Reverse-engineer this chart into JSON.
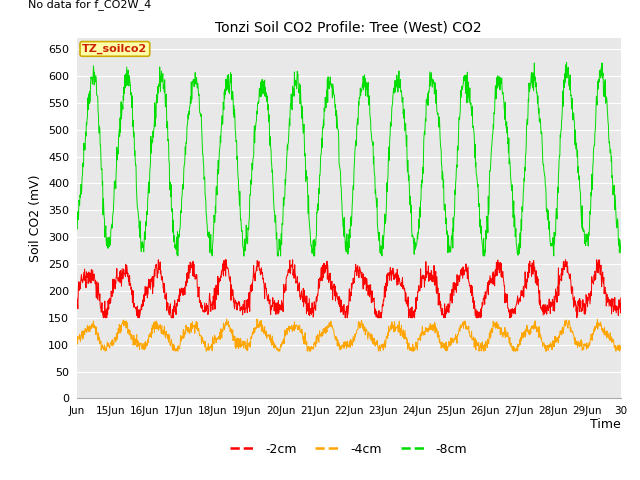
{
  "title": "Tonzi Soil CO2 Profile: Tree (West) CO2",
  "top_left_text": "No data for f_CO2W_4",
  "ylabel": "Soil CO2 (mV)",
  "xlabel": "Time",
  "legend_box_label": "TZ_soilco2",
  "legend_entries": [
    "-2cm",
    "-4cm",
    "-8cm"
  ],
  "legend_colors": [
    "#ff0000",
    "#ffa500",
    "#00dd00"
  ],
  "ylim": [
    0,
    670
  ],
  "yticks": [
    0,
    50,
    100,
    150,
    200,
    250,
    300,
    350,
    400,
    450,
    500,
    550,
    600,
    650
  ],
  "x_start_day": 14,
  "x_end_day": 30,
  "x_tick_days": [
    14,
    15,
    16,
    17,
    18,
    19,
    20,
    21,
    22,
    23,
    24,
    25,
    26,
    27,
    28,
    29,
    30
  ],
  "x_tick_labels": [
    "Jun",
    "15Jun",
    "16Jun",
    "17Jun",
    "18Jun",
    "19Jun",
    "20Jun",
    "21Jun",
    "22Jun",
    "23Jun",
    "24Jun",
    "25Jun",
    "26Jun",
    "27Jun",
    "28Jun",
    "29Jun",
    "30"
  ],
  "fig_bg_color": "#ffffff",
  "plot_bg_color": "#e8e8e8",
  "grid_color": "#ffffff",
  "line_color_2cm": "#ff0000",
  "line_color_4cm": "#ffa500",
  "line_color_8cm": "#00dd00",
  "seed": 42,
  "n_points_per_day": 96
}
